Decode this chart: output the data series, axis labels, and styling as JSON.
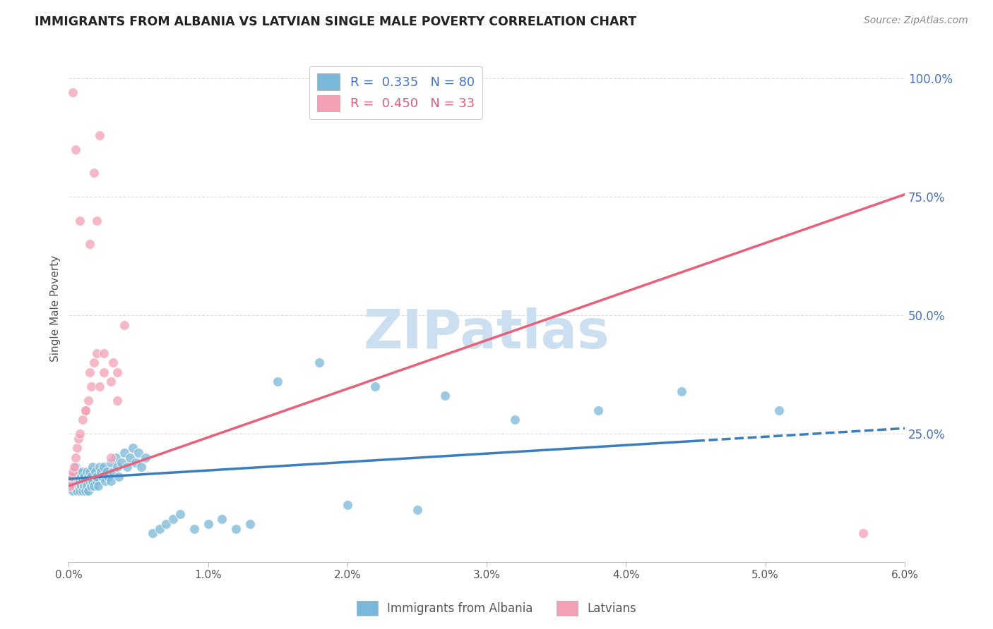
{
  "title": "IMMIGRANTS FROM ALBANIA VS LATVIAN SINGLE MALE POVERTY CORRELATION CHART",
  "source": "Source: ZipAtlas.com",
  "ylabel": "Single Male Poverty",
  "x_min": 0.0,
  "x_max": 0.06,
  "y_min": 0.0,
  "y_max": 1.0,
  "legend_r1": "R =  0.335",
  "legend_n1": "N = 80",
  "legend_r2": "R =  0.450",
  "legend_n2": "N = 33",
  "color_albania": "#7ab8d9",
  "color_latvian": "#f4a0b5",
  "trendline_albania_color": "#3a7ebf",
  "trendline_latvian_color": "#e8607a",
  "watermark": "ZIPatlas",
  "watermark_color": "#ccdff0",
  "trendline_albania_x0": 0.0,
  "trendline_albania_y0": 0.155,
  "trendline_albania_x1": 0.045,
  "trendline_albania_y1": 0.235,
  "trendline_albania_solid_end": 0.045,
  "trendline_albania_dash_end": 0.06,
  "trendline_latvian_x0": 0.0,
  "trendline_latvian_y0": 0.14,
  "trendline_latvian_x1": 0.06,
  "trendline_latvian_y1": 0.755,
  "albania_x": [
    0.0001,
    0.0002,
    0.0003,
    0.0003,
    0.0004,
    0.0004,
    0.0005,
    0.0005,
    0.0006,
    0.0006,
    0.0007,
    0.0007,
    0.0008,
    0.0008,
    0.0009,
    0.0009,
    0.001,
    0.001,
    0.001,
    0.0011,
    0.0011,
    0.0012,
    0.0012,
    0.0013,
    0.0013,
    0.0014,
    0.0014,
    0.0015,
    0.0015,
    0.0016,
    0.0016,
    0.0017,
    0.0017,
    0.0018,
    0.0019,
    0.002,
    0.002,
    0.0021,
    0.0022,
    0.0023,
    0.0024,
    0.0025,
    0.0026,
    0.0027,
    0.0028,
    0.003,
    0.003,
    0.0032,
    0.0034,
    0.0035,
    0.0036,
    0.0038,
    0.004,
    0.0042,
    0.0044,
    0.0046,
    0.0048,
    0.005,
    0.0052,
    0.0055,
    0.006,
    0.0065,
    0.007,
    0.0075,
    0.008,
    0.009,
    0.01,
    0.011,
    0.012,
    0.013,
    0.015,
    0.018,
    0.022,
    0.027,
    0.032,
    0.038,
    0.044,
    0.051,
    0.02,
    0.025
  ],
  "albania_y": [
    0.14,
    0.15,
    0.13,
    0.16,
    0.14,
    0.17,
    0.15,
    0.18,
    0.13,
    0.16,
    0.14,
    0.17,
    0.15,
    0.13,
    0.16,
    0.14,
    0.15,
    0.13,
    0.17,
    0.14,
    0.16,
    0.15,
    0.13,
    0.17,
    0.14,
    0.16,
    0.13,
    0.15,
    0.17,
    0.14,
    0.16,
    0.15,
    0.18,
    0.14,
    0.17,
    0.15,
    0.16,
    0.14,
    0.18,
    0.17,
    0.16,
    0.18,
    0.15,
    0.17,
    0.16,
    0.19,
    0.15,
    0.17,
    0.2,
    0.18,
    0.16,
    0.19,
    0.21,
    0.18,
    0.2,
    0.22,
    0.19,
    0.21,
    0.18,
    0.2,
    0.04,
    0.05,
    0.06,
    0.07,
    0.08,
    0.05,
    0.06,
    0.07,
    0.05,
    0.06,
    0.36,
    0.4,
    0.35,
    0.33,
    0.28,
    0.3,
    0.34,
    0.3,
    0.1,
    0.09
  ],
  "latvian_x": [
    0.0001,
    0.0002,
    0.0003,
    0.0004,
    0.0005,
    0.0006,
    0.0007,
    0.0008,
    0.001,
    0.0012,
    0.0014,
    0.0015,
    0.0016,
    0.0018,
    0.002,
    0.0022,
    0.0025,
    0.003,
    0.0032,
    0.0035,
    0.004,
    0.0015,
    0.002,
    0.0025,
    0.003,
    0.0018,
    0.0022,
    0.0012,
    0.0008,
    0.0005,
    0.0035,
    0.0003,
    0.057
  ],
  "latvian_y": [
    0.14,
    0.16,
    0.17,
    0.18,
    0.2,
    0.22,
    0.24,
    0.25,
    0.28,
    0.3,
    0.32,
    0.38,
    0.35,
    0.4,
    0.42,
    0.35,
    0.38,
    0.36,
    0.4,
    0.38,
    0.48,
    0.65,
    0.7,
    0.42,
    0.2,
    0.8,
    0.88,
    0.3,
    0.7,
    0.85,
    0.32,
    0.97,
    0.04
  ]
}
